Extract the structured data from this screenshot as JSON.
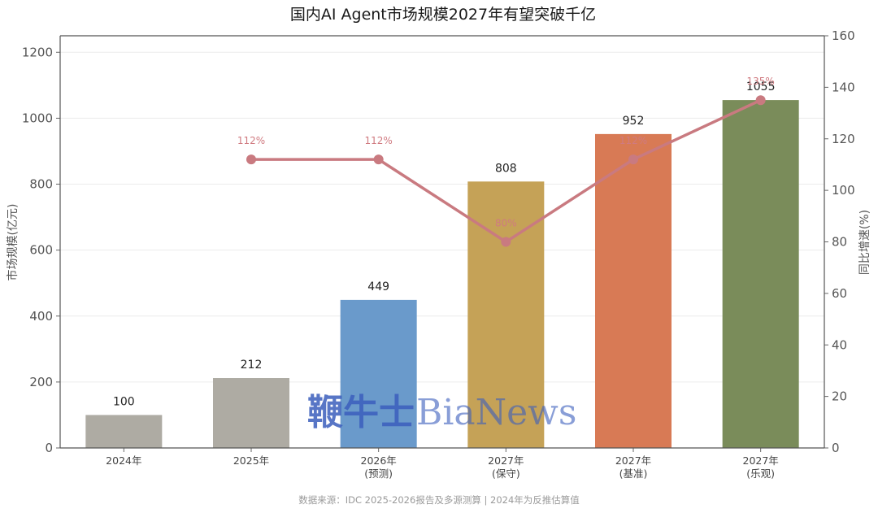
{
  "chart_data": {
    "type": "bar",
    "title": "国内AI Agent市场规模2027年有望突破千亿",
    "ylabel": "市场规模(亿元)",
    "y2label": "同比增速(%)",
    "categories": [
      [
        "2024年"
      ],
      [
        "2025年"
      ],
      [
        "2026年",
        "(预测)"
      ],
      [
        "2027年",
        "(保守)"
      ],
      [
        "2027年",
        "(基准)"
      ],
      [
        "2027年",
        "(乐观)"
      ]
    ],
    "values": [
      100,
      212,
      449,
      808,
      952,
      1055
    ],
    "value_labels": [
      "100",
      "212",
      "449",
      "808",
      "952",
      "1055"
    ],
    "bar_colors": [
      "#aeaba3",
      "#aeaba3",
      "#6a9acb",
      "#c5a257",
      "#d87a55",
      "#7a8c5a"
    ],
    "growth": {
      "values": [
        null,
        112,
        112,
        80,
        112,
        135
      ],
      "labels": [
        "",
        "112%",
        "112%",
        "80%",
        "112%",
        "135%"
      ],
      "color": "#c97a80"
    },
    "ylim": [
      0,
      1250
    ],
    "yticks": [
      "0",
      "200",
      "400",
      "600",
      "800",
      "1000",
      "1200"
    ],
    "y2lim": [
      0,
      160
    ],
    "y2ticks": [
      "0",
      "20",
      "40",
      "60",
      "80",
      "100",
      "120",
      "140",
      "160"
    ],
    "grid": "horizontal"
  },
  "watermark": {
    "cn": "鞭牛士",
    "en": "BiaNews"
  },
  "source_note": "数据来源：IDC 2025-2026报告及多源测算 | 2024年为反推估算值"
}
